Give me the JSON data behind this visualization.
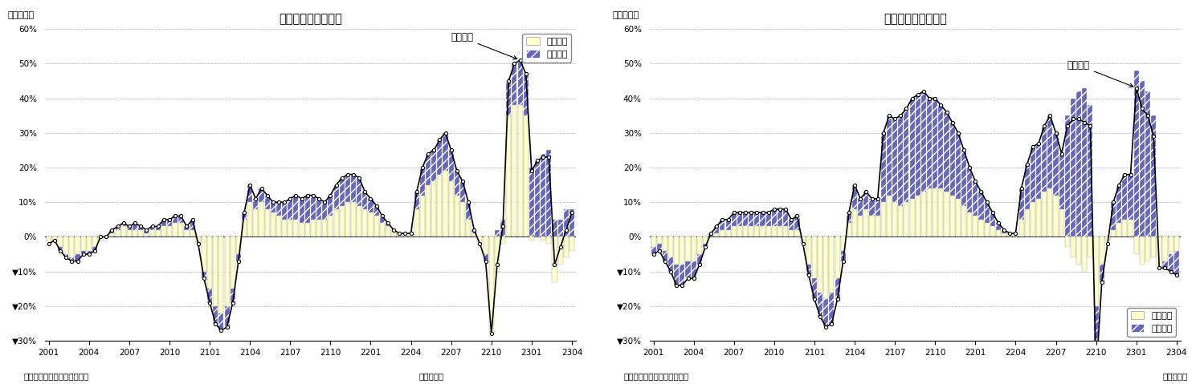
{
  "left_title": "輸出金額の要因分解",
  "right_title": "輸入金額の要因分解",
  "left_line_label": "輸出金額",
  "right_line_label": "輸入金額",
  "qty_label": "数量要因",
  "price_label": "価格要因",
  "x_tick_labels": [
    "2001",
    "2004",
    "2007",
    "2010",
    "2101",
    "2104",
    "2107",
    "2110",
    "2201",
    "2204",
    "2207",
    "2210",
    "2301",
    "2304"
  ],
  "ylim": [
    -30,
    60
  ],
  "ytick_vals": [
    -30,
    -20,
    -10,
    0,
    10,
    20,
    30,
    40,
    50,
    60
  ],
  "ytick_labels": [
    "▼30%",
    "▼20%",
    "▼10%",
    "0%",
    "10%",
    "20%",
    "30%",
    "40%",
    "50%",
    "60%"
  ],
  "qty_color": "#ffffcc",
  "qty_edge": "#999999",
  "price_color": "#6666bb",
  "price_hatch": "///",
  "line_color": "#000000",
  "grid_color": "#aaaaaa",
  "bg_color": "#ffffff",
  "ylabel_text": "（前年比）",
  "source_text": "（資料）財務省「貿易統計」",
  "year_month_text": "（年・月）",
  "left_qty": [
    -2,
    -1,
    -3,
    -5,
    -6,
    -5,
    -4,
    -4,
    -3,
    -1,
    0,
    1,
    2,
    3,
    2,
    2,
    2,
    1,
    2,
    2,
    3,
    3,
    4,
    4,
    2,
    2,
    -2,
    -10,
    -15,
    -20,
    -22,
    -20,
    -15,
    -5,
    5,
    10,
    8,
    10,
    8,
    7,
    6,
    5,
    5,
    5,
    4,
    4,
    5,
    5,
    5,
    6,
    8,
    9,
    10,
    10,
    9,
    8,
    7,
    6,
    4,
    3,
    2,
    1,
    1,
    1,
    8,
    12,
    15,
    16,
    18,
    19,
    16,
    12,
    10,
    5,
    1,
    -2,
    -5,
    -28,
    -10,
    -2,
    35,
    38,
    38,
    35,
    -1,
    0,
    -1,
    -2,
    -13,
    -8,
    -6,
    -4
  ],
  "left_price": [
    0,
    0,
    -1,
    -1,
    -1,
    -2,
    -1,
    -1,
    -1,
    0,
    0,
    1,
    1,
    1,
    1,
    2,
    1,
    1,
    1,
    1,
    2,
    2,
    2,
    2,
    1,
    3,
    0,
    -2,
    -4,
    -5,
    -5,
    -6,
    -4,
    -2,
    2,
    5,
    3,
    4,
    4,
    3,
    4,
    5,
    6,
    7,
    7,
    8,
    7,
    6,
    5,
    6,
    7,
    8,
    8,
    8,
    8,
    5,
    4,
    3,
    2,
    1,
    0,
    0,
    0,
    0,
    5,
    8,
    9,
    9,
    10,
    11,
    9,
    7,
    6,
    5,
    1,
    0,
    -2,
    0,
    2,
    5,
    10,
    12,
    13,
    12,
    20,
    22,
    24,
    25,
    5,
    5,
    8,
    8
  ],
  "left_line": [
    -2,
    -1,
    -4,
    -6,
    -7,
    -7,
    -5,
    -5,
    -4,
    0,
    0,
    2,
    3,
    4,
    3,
    4,
    3,
    2,
    3,
    3,
    5,
    5,
    6,
    6,
    3,
    5,
    -2,
    -12,
    -19,
    -25,
    -27,
    -26,
    -19,
    -7,
    7,
    15,
    11,
    14,
    12,
    10,
    10,
    10,
    11,
    12,
    11,
    12,
    12,
    11,
    10,
    12,
    15,
    17,
    18,
    18,
    17,
    13,
    11,
    9,
    6,
    4,
    2,
    1,
    1,
    1,
    13,
    20,
    24,
    25,
    28,
    30,
    25,
    19,
    16,
    10,
    2,
    -2,
    -7,
    -28,
    -8,
    3,
    45,
    50,
    51,
    47,
    19,
    22,
    23,
    23,
    -8,
    -3,
    2,
    7
  ],
  "right_qty": [
    -3,
    -2,
    -4,
    -6,
    -8,
    -8,
    -7,
    -7,
    -5,
    -2,
    0,
    1,
    2,
    2,
    3,
    3,
    3,
    3,
    3,
    3,
    3,
    3,
    3,
    3,
    2,
    2,
    -2,
    -8,
    -12,
    -16,
    -18,
    -16,
    -12,
    -4,
    4,
    8,
    6,
    8,
    6,
    6,
    10,
    12,
    10,
    9,
    10,
    11,
    12,
    13,
    14,
    14,
    14,
    13,
    12,
    11,
    9,
    7,
    6,
    5,
    4,
    3,
    2,
    1,
    1,
    1,
    5,
    8,
    10,
    11,
    13,
    14,
    12,
    8,
    -3,
    -6,
    -8,
    -10,
    -6,
    -20,
    -8,
    -2,
    2,
    4,
    5,
    5,
    -5,
    -8,
    -7,
    -6,
    -9,
    -7,
    -5,
    -4
  ],
  "right_price": [
    -2,
    -2,
    -3,
    -4,
    -6,
    -6,
    -5,
    -5,
    -3,
    -1,
    1,
    2,
    3,
    3,
    4,
    4,
    4,
    4,
    4,
    4,
    4,
    5,
    5,
    5,
    3,
    4,
    0,
    -3,
    -6,
    -7,
    -8,
    -9,
    -6,
    -3,
    3,
    7,
    5,
    5,
    5,
    5,
    20,
    23,
    24,
    26,
    27,
    29,
    29,
    29,
    26,
    26,
    24,
    23,
    21,
    19,
    16,
    13,
    10,
    8,
    6,
    4,
    2,
    1,
    0,
    0,
    9,
    13,
    16,
    16,
    19,
    21,
    18,
    16,
    35,
    40,
    42,
    43,
    38,
    -20,
    -5,
    0,
    8,
    11,
    13,
    13,
    48,
    45,
    42,
    35,
    0,
    -2,
    -5,
    -7
  ],
  "right_line": [
    -5,
    -4,
    -7,
    -10,
    -14,
    -14,
    -12,
    -12,
    -8,
    -3,
    1,
    3,
    5,
    5,
    7,
    7,
    7,
    7,
    7,
    7,
    7,
    8,
    8,
    8,
    5,
    6,
    -2,
    -11,
    -18,
    -23,
    -26,
    -25,
    -18,
    -7,
    7,
    15,
    11,
    13,
    11,
    11,
    30,
    35,
    34,
    35,
    37,
    40,
    41,
    42,
    40,
    40,
    38,
    36,
    33,
    30,
    25,
    20,
    16,
    13,
    10,
    7,
    4,
    2,
    1,
    1,
    14,
    21,
    26,
    27,
    32,
    35,
    30,
    24,
    32,
    34,
    34,
    33,
    32,
    -40,
    -13,
    -2,
    10,
    15,
    18,
    18,
    43,
    37,
    35,
    29,
    -9,
    -9,
    -10,
    -11
  ]
}
